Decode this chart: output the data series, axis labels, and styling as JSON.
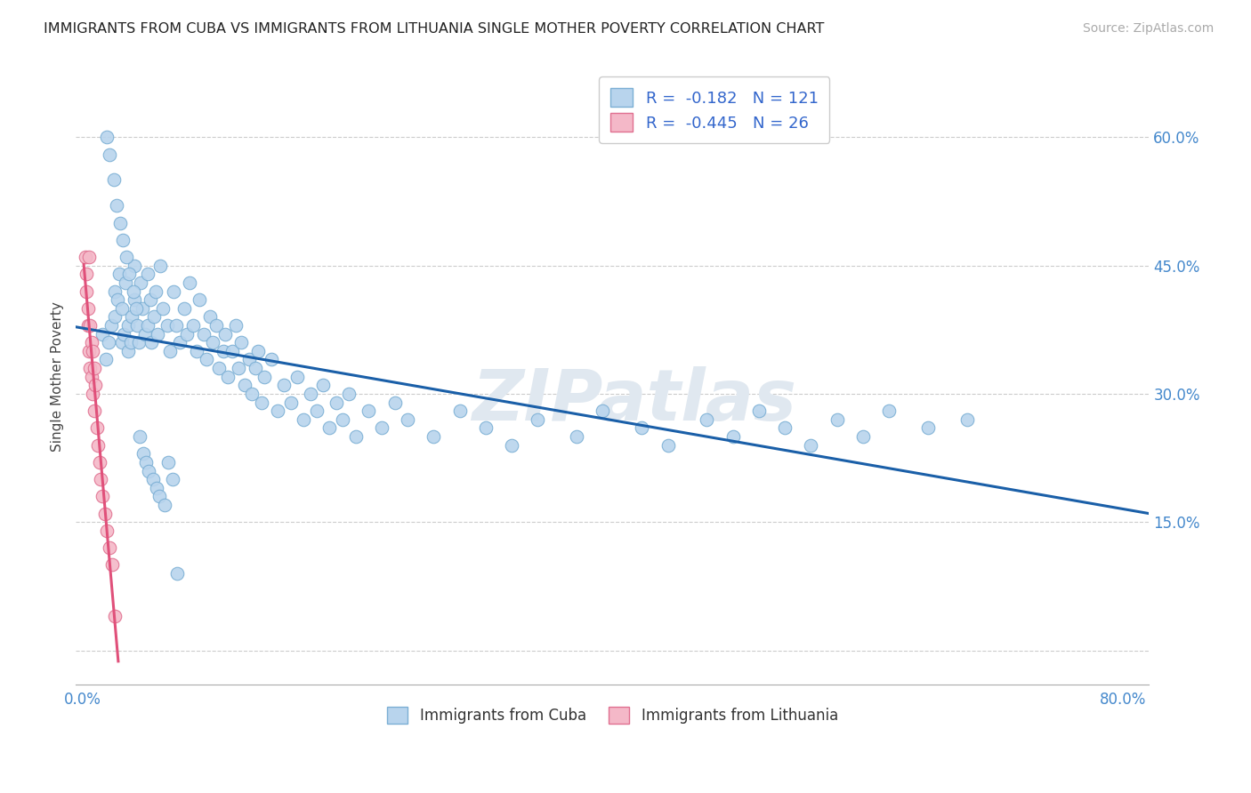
{
  "title": "IMMIGRANTS FROM CUBA VS IMMIGRANTS FROM LITHUANIA SINGLE MOTHER POVERTY CORRELATION CHART",
  "source": "Source: ZipAtlas.com",
  "ylabel": "Single Mother Poverty",
  "x_ticks": [
    0.0,
    0.1,
    0.2,
    0.3,
    0.4,
    0.5,
    0.6,
    0.7,
    0.8
  ],
  "x_tick_labels": [
    "0.0%",
    "",
    "",
    "",
    "",
    "",
    "",
    "",
    "80.0%"
  ],
  "y_ticks": [
    0.0,
    0.15,
    0.3,
    0.45,
    0.6
  ],
  "y_tick_labels": [
    "",
    "15.0%",
    "30.0%",
    "45.0%",
    "60.0%"
  ],
  "xlim": [
    -0.005,
    0.82
  ],
  "ylim": [
    -0.04,
    0.68
  ],
  "cuba_color": "#b8d4ed",
  "cuba_edge": "#7bafd4",
  "lithuania_color": "#f4b8c8",
  "lithuania_edge": "#e07090",
  "trendline_cuba_color": "#1a5fa8",
  "trendline_lithuania_color": "#e0507a",
  "background_color": "#ffffff",
  "grid_color": "#cccccc",
  "watermark_color": "#e0e8f0",
  "watermark_text": "ZIPatlas",
  "cuba_x": [
    0.015,
    0.018,
    0.02,
    0.022,
    0.025,
    0.025,
    0.027,
    0.028,
    0.03,
    0.03,
    0.032,
    0.033,
    0.035,
    0.035,
    0.037,
    0.038,
    0.04,
    0.04,
    0.042,
    0.043,
    0.045,
    0.046,
    0.048,
    0.05,
    0.05,
    0.052,
    0.053,
    0.055,
    0.056,
    0.058,
    0.06,
    0.062,
    0.065,
    0.067,
    0.07,
    0.072,
    0.075,
    0.078,
    0.08,
    0.082,
    0.085,
    0.088,
    0.09,
    0.093,
    0.095,
    0.098,
    0.1,
    0.103,
    0.105,
    0.108,
    0.11,
    0.112,
    0.115,
    0.118,
    0.12,
    0.122,
    0.125,
    0.128,
    0.13,
    0.133,
    0.135,
    0.138,
    0.14,
    0.145,
    0.15,
    0.155,
    0.16,
    0.165,
    0.17,
    0.175,
    0.18,
    0.185,
    0.19,
    0.195,
    0.2,
    0.205,
    0.21,
    0.22,
    0.23,
    0.24,
    0.25,
    0.27,
    0.29,
    0.31,
    0.33,
    0.35,
    0.38,
    0.4,
    0.43,
    0.45,
    0.48,
    0.5,
    0.52,
    0.54,
    0.56,
    0.58,
    0.6,
    0.62,
    0.65,
    0.68,
    0.019,
    0.021,
    0.024,
    0.026,
    0.029,
    0.031,
    0.034,
    0.036,
    0.039,
    0.041,
    0.044,
    0.047,
    0.049,
    0.051,
    0.054,
    0.057,
    0.059,
    0.063,
    0.066,
    0.069,
    0.073
  ],
  "cuba_y": [
    0.37,
    0.34,
    0.36,
    0.38,
    0.42,
    0.39,
    0.41,
    0.44,
    0.36,
    0.4,
    0.37,
    0.43,
    0.38,
    0.35,
    0.36,
    0.39,
    0.45,
    0.41,
    0.38,
    0.36,
    0.43,
    0.4,
    0.37,
    0.44,
    0.38,
    0.41,
    0.36,
    0.39,
    0.42,
    0.37,
    0.45,
    0.4,
    0.38,
    0.35,
    0.42,
    0.38,
    0.36,
    0.4,
    0.37,
    0.43,
    0.38,
    0.35,
    0.41,
    0.37,
    0.34,
    0.39,
    0.36,
    0.38,
    0.33,
    0.35,
    0.37,
    0.32,
    0.35,
    0.38,
    0.33,
    0.36,
    0.31,
    0.34,
    0.3,
    0.33,
    0.35,
    0.29,
    0.32,
    0.34,
    0.28,
    0.31,
    0.29,
    0.32,
    0.27,
    0.3,
    0.28,
    0.31,
    0.26,
    0.29,
    0.27,
    0.3,
    0.25,
    0.28,
    0.26,
    0.29,
    0.27,
    0.25,
    0.28,
    0.26,
    0.24,
    0.27,
    0.25,
    0.28,
    0.26,
    0.24,
    0.27,
    0.25,
    0.28,
    0.26,
    0.24,
    0.27,
    0.25,
    0.28,
    0.26,
    0.27,
    0.6,
    0.58,
    0.55,
    0.52,
    0.5,
    0.48,
    0.46,
    0.44,
    0.42,
    0.4,
    0.25,
    0.23,
    0.22,
    0.21,
    0.2,
    0.19,
    0.18,
    0.17,
    0.22,
    0.2,
    0.09
  ],
  "lithuania_x": [
    0.002,
    0.003,
    0.003,
    0.004,
    0.004,
    0.005,
    0.005,
    0.006,
    0.006,
    0.007,
    0.007,
    0.008,
    0.008,
    0.009,
    0.009,
    0.01,
    0.011,
    0.012,
    0.013,
    0.014,
    0.015,
    0.017,
    0.019,
    0.021,
    0.023,
    0.025
  ],
  "lithuania_y": [
    0.46,
    0.44,
    0.42,
    0.4,
    0.38,
    0.46,
    0.35,
    0.38,
    0.33,
    0.36,
    0.32,
    0.3,
    0.35,
    0.28,
    0.33,
    0.31,
    0.26,
    0.24,
    0.22,
    0.2,
    0.18,
    0.16,
    0.14,
    0.12,
    0.1,
    0.04
  ]
}
